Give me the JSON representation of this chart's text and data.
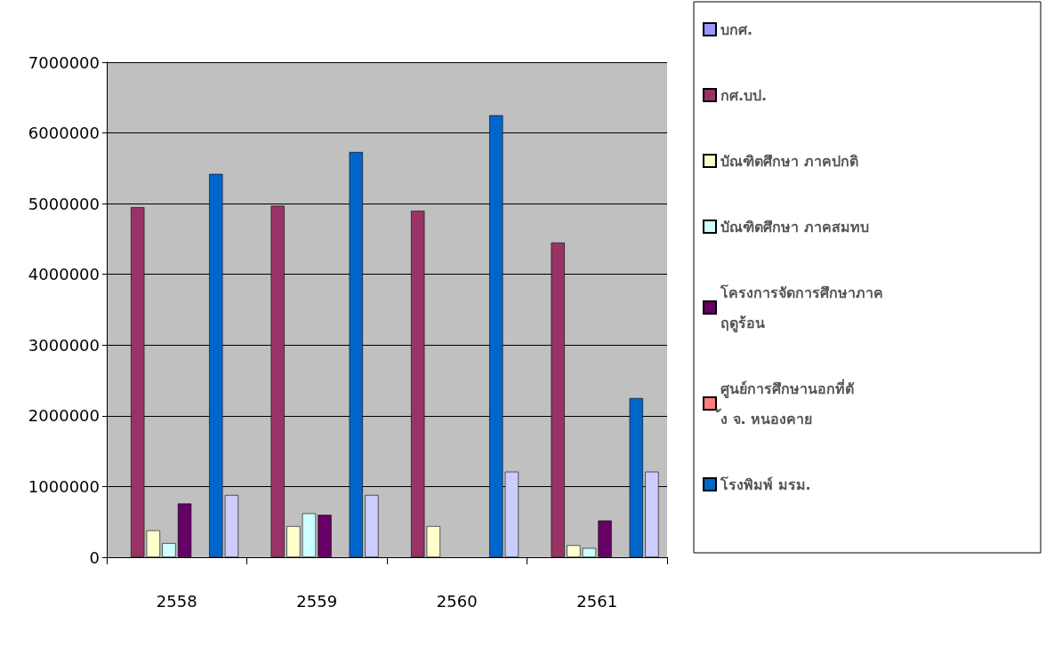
{
  "chart_data": {
    "type": "bar",
    "categories": [
      "2558",
      "2559",
      "2560",
      "2561"
    ],
    "series": [
      {
        "name": "บกศ.",
        "color": "#9999ff",
        "values": [
          0,
          0,
          0,
          0
        ]
      },
      {
        "name": "กศ.บป.",
        "color": "#993366",
        "values": [
          4950000,
          4970000,
          4900000,
          4450000
        ]
      },
      {
        "name": "บัณฑิตศึกษา ภาคปกติ",
        "color": "#ffffcc",
        "values": [
          380000,
          440000,
          440000,
          170000
        ]
      },
      {
        "name": "บัณฑิตศึกษา ภาคสมทบ",
        "color": "#ccffff",
        "values": [
          200000,
          620000,
          0,
          130000
        ]
      },
      {
        "name": "โครงการจัดการศึกษาภาคฤดูร้อน",
        "color": "#660066",
        "values": [
          760000,
          600000,
          0,
          520000
        ]
      },
      {
        "name": "ศูนย์การศึกษานอกที่ตั้ง จ. หนองคาย",
        "color": "#ff8080",
        "values": [
          0,
          0,
          0,
          0
        ]
      },
      {
        "name": "โรงพิมพ์ มรม.",
        "color": "#0066cc",
        "values": [
          5420000,
          5730000,
          6250000,
          2250000
        ]
      },
      {
        "color": "#ccccff",
        "values": [
          880000,
          880000,
          1210000,
          1210000
        ]
      }
    ],
    "ylim": [
      0,
      7000000
    ],
    "yticks": [
      0,
      1000000,
      2000000,
      3000000,
      4000000,
      5000000,
      6000000,
      7000000
    ],
    "grid": "y",
    "legend": "right"
  }
}
